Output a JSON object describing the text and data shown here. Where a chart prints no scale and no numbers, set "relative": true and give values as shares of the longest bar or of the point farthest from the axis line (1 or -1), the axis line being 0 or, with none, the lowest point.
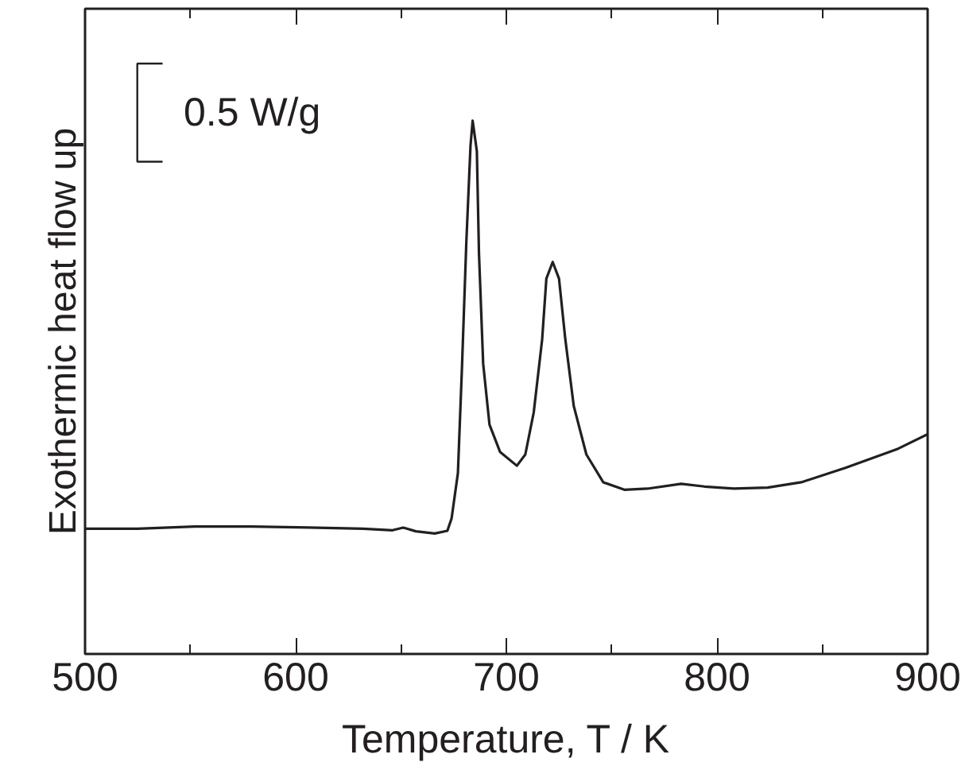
{
  "chart_data": {
    "type": "line",
    "relative": true,
    "xlabel": "Temperature, T / K",
    "ylabel": "Exothermic heat flow up",
    "annotations": [
      "0.5 W/g"
    ],
    "xlim": [
      500,
      900
    ],
    "xticks": [
      500,
      {
        "value": 550,
        "label": null
      },
      600,
      {
        "value": 650,
        "label": null
      },
      700,
      {
        "value": 750,
        "label": null
      },
      800,
      {
        "value": 850,
        "label": null
      },
      900
    ],
    "grid": false,
    "marker": "none",
    "line_style": "solid",
    "series": [
      {
        "color": "#231f20",
        "x": [
          500,
          525,
          552,
          579,
          606,
          632,
          646,
          651,
          657,
          666,
          672,
          674,
          677,
          679,
          681,
          683,
          684,
          686,
          687,
          689,
          692,
          697,
          705,
          709,
          713,
          717,
          719,
          722,
          725,
          728,
          732,
          738,
          746,
          756,
          767,
          783,
          794,
          808,
          824,
          840,
          861,
          886,
          900
        ],
        "values": [
          0.235,
          0.235,
          0.239,
          0.239,
          0.237,
          0.235,
          0.232,
          0.237,
          0.23,
          0.226,
          0.231,
          0.254,
          0.339,
          0.544,
          0.772,
          0.954,
          1.0,
          0.943,
          0.752,
          0.544,
          0.43,
          0.379,
          0.353,
          0.374,
          0.453,
          0.59,
          0.704,
          0.735,
          0.704,
          0.59,
          0.465,
          0.374,
          0.322,
          0.308,
          0.31,
          0.319,
          0.314,
          0.31,
          0.312,
          0.322,
          0.349,
          0.385,
          0.412
        ]
      }
    ]
  }
}
